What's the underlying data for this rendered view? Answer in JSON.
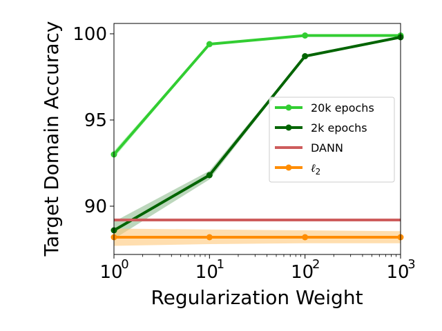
{
  "chart_data": {
    "type": "line",
    "xlabel": "Regularization Weight",
    "ylabel": "Target Domain Accuracy",
    "xscale": "log",
    "xlim": [
      1,
      1000
    ],
    "ylim": [
      87.2,
      100.6
    ],
    "xticks": [
      {
        "value": 1,
        "base": "10",
        "exp": "0"
      },
      {
        "value": 10,
        "base": "10",
        "exp": "1"
      },
      {
        "value": 100,
        "base": "10",
        "exp": "2"
      },
      {
        "value": 1000,
        "base": "10",
        "exp": "3"
      }
    ],
    "yticks": [
      {
        "value": 90,
        "label": "90"
      },
      {
        "value": 95,
        "label": "95"
      },
      {
        "value": 100,
        "label": "100"
      }
    ],
    "grid": false,
    "legend_position": "center-right",
    "series": [
      {
        "name": "20k epochs",
        "color": "#32cd32",
        "band_color": "#90ee90",
        "marker": true,
        "x": [
          1,
          10,
          100,
          1000
        ],
        "y": [
          93.0,
          99.4,
          99.9,
          99.9
        ],
        "lower": [
          92.8,
          99.35,
          99.85,
          99.85
        ],
        "upper": [
          93.2,
          99.45,
          99.95,
          99.95
        ]
      },
      {
        "name": "2k epochs",
        "color": "#006400",
        "band_color": "#8fbc8f",
        "marker": true,
        "x": [
          1,
          10,
          100,
          1000
        ],
        "y": [
          88.6,
          91.8,
          98.7,
          99.8
        ],
        "lower": [
          88.1,
          91.55,
          98.65,
          99.75
        ],
        "upper": [
          89.1,
          92.05,
          98.75,
          99.85
        ]
      },
      {
        "name": "DANN",
        "color": "#cd5c5c",
        "marker": false,
        "x": [
          1,
          1000
        ],
        "y": [
          89.2,
          89.2
        ]
      },
      {
        "name": "ℓ2",
        "legend_base": "ℓ",
        "legend_sub": "2",
        "color": "#ff8c00",
        "band_color": "#ffc87a",
        "marker": true,
        "x": [
          1,
          10,
          100,
          1000
        ],
        "y": [
          88.2,
          88.2,
          88.2,
          88.2
        ],
        "lower": [
          87.7,
          87.8,
          87.85,
          87.85
        ],
        "upper": [
          88.7,
          88.65,
          88.6,
          88.55
        ]
      }
    ]
  }
}
